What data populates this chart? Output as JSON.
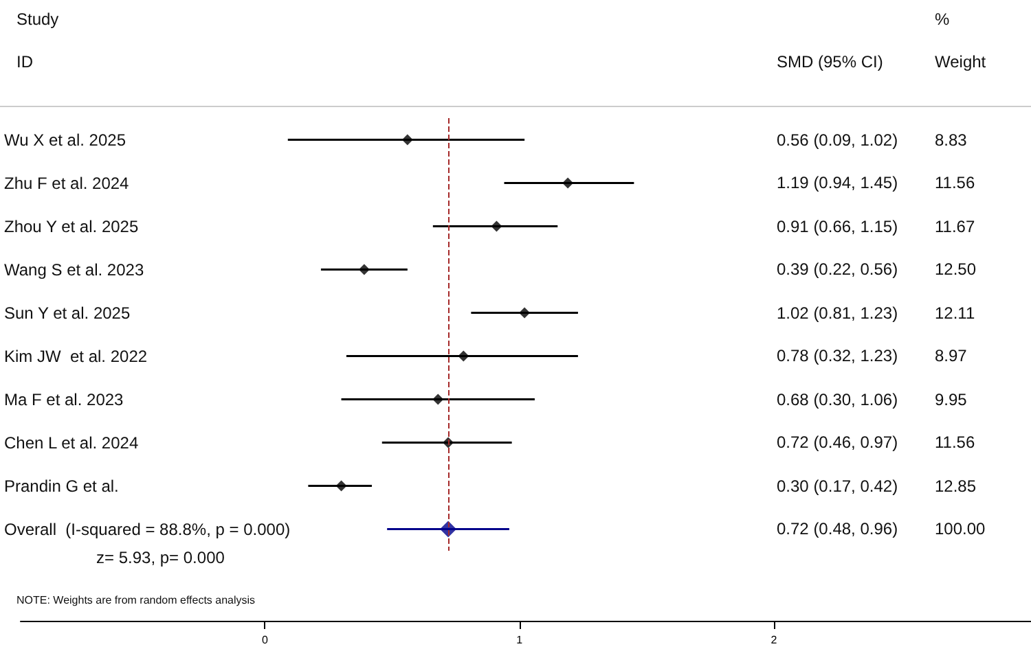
{
  "chart_data": {
    "type": "scatter",
    "orientation": "horizontal",
    "categories": [
      "Wu X et al. 2025",
      "Zhu F et al. 2024",
      "Zhou Y et al. 2025",
      "Wang S et al. 2023",
      "Sun Y et al. 2025",
      "Kim JW  et al. 2022",
      "Ma F et al. 2023",
      "Chen L et al. 2024",
      "Prandin G et al.",
      "Overall  (I-squared = 88.8%, p = 0.000)"
    ],
    "series": [
      {
        "color": "#000000",
        "marker": "diamond",
        "values": [
          0.56,
          1.19,
          0.91,
          0.39,
          1.02,
          0.78,
          0.68,
          0.72,
          0.3,
          null
        ],
        "errors": [
          [
            0.09,
            1.02
          ],
          [
            0.94,
            1.45
          ],
          [
            0.66,
            1.15
          ],
          [
            0.22,
            0.56
          ],
          [
            0.81,
            1.23
          ],
          [
            0.32,
            1.23
          ],
          [
            0.3,
            1.06
          ],
          [
            0.46,
            0.97
          ],
          [
            0.17,
            0.42
          ],
          null
        ]
      },
      {
        "color": "#00008b",
        "marker": "diamond",
        "values": [
          null,
          null,
          null,
          null,
          null,
          null,
          null,
          null,
          null,
          0.72
        ],
        "errors": [
          null,
          null,
          null,
          null,
          null,
          null,
          null,
          null,
          null,
          [
            0.48,
            0.96
          ]
        ]
      }
    ],
    "xlim": [
      -0.96,
      3.01
    ],
    "xticks": [
      0,
      1,
      2
    ],
    "grid": false,
    "ref_lines": [
      {
        "axis": "x",
        "value": 0.72,
        "color": "#a52a2a",
        "line_style": "dashed"
      }
    ],
    "annotations": [
      "Study",
      "ID",
      "SMD (95% CI)",
      "%",
      "Weight",
      "z= 5.93,   p= 0.000",
      "NOTE: Weights are from random effects analysis",
      "0.56 (0.09, 1.02)",
      "8.83",
      "1.19 (0.94, 1.45)",
      "11.56",
      "0.91 (0.66, 1.15)",
      "11.67",
      "0.39 (0.22, 0.56)",
      "12.50",
      "1.02 (0.81, 1.23)",
      "12.11",
      "0.78 (0.32, 1.23)",
      "8.97",
      "0.68 (0.30, 1.06)",
      "9.95",
      "0.72 (0.46, 0.97)",
      "11.56",
      "0.30 (0.17, 0.42)",
      "12.85",
      "0.72 (0.48, 0.96)",
      "100.00"
    ]
  }
}
